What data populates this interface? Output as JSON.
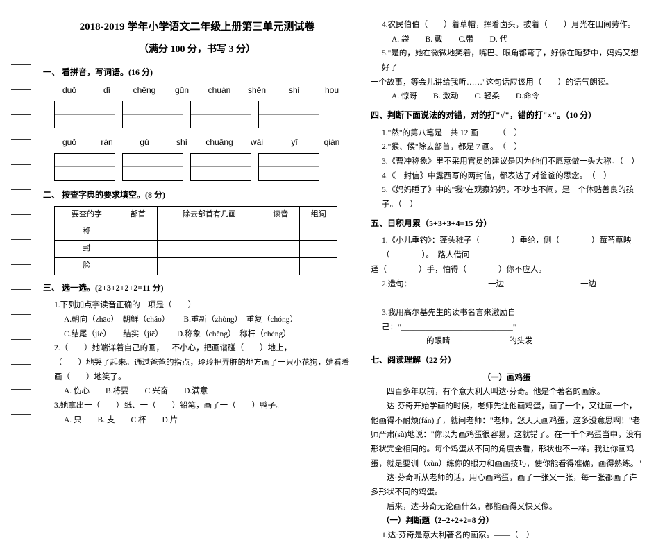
{
  "left": {
    "title": "2018-2019 学年小学语文二年级上册第三单元测试卷",
    "subtitle": "（满分 100 分，书写 3 分）",
    "s1": {
      "h": "一、 看拼音，写词语。(16 分)",
      "row1": [
        "duǒ",
        "dī",
        "chēng",
        "gǔn",
        "chuán",
        "shēn",
        "shí",
        "hou"
      ],
      "row2": [
        "guǒ",
        "rán",
        "gù",
        "shì",
        "chuāng",
        "wài",
        "yī",
        "qián"
      ]
    },
    "s2": {
      "h": "二、 按查字典的要求填空。(8 分)",
      "cols": [
        "要查的字",
        "部首",
        "除去部首有几画",
        "读音",
        "组词"
      ],
      "rows": [
        "称",
        "封",
        "脸"
      ]
    },
    "s3": {
      "h": "三、 选一选。(2+3+2+2+2=11 分)",
      "q1": "1.下列加点字读音正确的一项是（　　）",
      "a1a": "A.朝向（zhāo）　朝鲜（cháo）",
      "a1b": "B.重新（zhòng）　重复（chóng）",
      "a1c": "C.结尾（jié）　　结实（jiē）",
      "a1d": "D.称象（chēng）　称杆（chèng）",
      "q2a": "2.（　　）她端详着自己的画，一不小心，把画谱碰（　　）地上，",
      "q2b": "（　　）地哭了起来。通过爸爸的指点，玲玲把弄脏的地方画了一只小花狗，她看着画（　　）地笑了。",
      "opt2": "A. 伤心　　B.将要　　C.兴奋　　D.满意",
      "q3": "3.她拿出一（　　）纸、一（　　）铅笔，画了一（　　）鸭子。",
      "opt3": "A. 只　　B. 支　　C.杯　　D.片"
    }
  },
  "right": {
    "q4": "4.农民伯伯（　　）着草帽，挥着卤头，披着（　　）月光在田间劳作。",
    "opt4": "A. 袋　　B. 戴　　C.带　　D. 代",
    "q5a": "5.\"是的，她在微微地笑着，嘴巴、眼角都弯了，好像在睡梦中，妈妈又想好了",
    "q5b": "一个故事，等会儿讲给我听……\"这句话应该用（　　）的语气朗读。",
    "opt5": "A. 惊讶　　B. 激动　　C. 轻柔　　D.命令",
    "s4": "四、判断下面说法的对错，对的打\"√\"，错的打\"×\"。（10 分）",
    "j1": "1.\"然\"的第八笔是一共 12 画　　　（　）",
    "j2": "2.\"猴、候\"除去部首，都是 7 画。　（　）",
    "j3": "3.《曹冲称象》里不采用官员的建议是因为他们不愿意做一头大称。（　）",
    "j4": "4.《一封信》中露西写的两封信，都表达了对爸爸的思念。　（　）",
    "j5": "5.《妈妈睡了》中的\"我\"在观察妈妈，不吵也不闹，是一个体贴善良的孩子。（　）",
    "s5": "五、日积月累（5+3+3+4=15 分）",
    "l1a": "1.《小儿垂钓》：蓬头稚子（　　　　）垂纶，侧（　　　　）莓苔草映（　　　　）。　路人借问",
    "l1b": "迳（　　　　）手，怕得（　　　　）你不应人。",
    "l2": "2.造句：________一边________一边________",
    "l3a": "3.我用高尔基先生的读书名言来激励自己：\"____________________________\"",
    "l3b": "________的眼睛　　　________的头发",
    "s7": "七、阅读理解（22 分）",
    "rt": "（一）画鸡蛋",
    "p1": "四百多年以前，有个意大利人叫达·芬奇。他是个著名的画家。",
    "p2": "达·芬奇开始学画的时候，老师先让他画鸡蛋，画了一个，又让画一个，他画得不耐烦(fán)了，就问老师：\"老师，您天天画鸡蛋，这多没意思啊！\"老师严肃(sù)地说：\"你以为画鸡蛋很容易，这就错了。在一千个鸡蛋当中，没有形状完全相同的。每个鸡蛋从不同的角度去看，形状也不一样。我让你画鸡蛋，就是要训（xùn）练你的眼力和画画技巧，使你能看得准确，画得熟练。\"",
    "p3": "达·芬奇听从老师的话，用心画鸡蛋，画了一张又一张，每一张都画了许多形状不同的鸡蛋。",
    "p4": "后来，达·芬奇无论画什么，都能画得又快又像。",
    "sub": "（一）判断题（2+2+2+2=8 分）",
    "jj1": "1.达·芬奇是意大利著名的画家。——（　）"
  }
}
